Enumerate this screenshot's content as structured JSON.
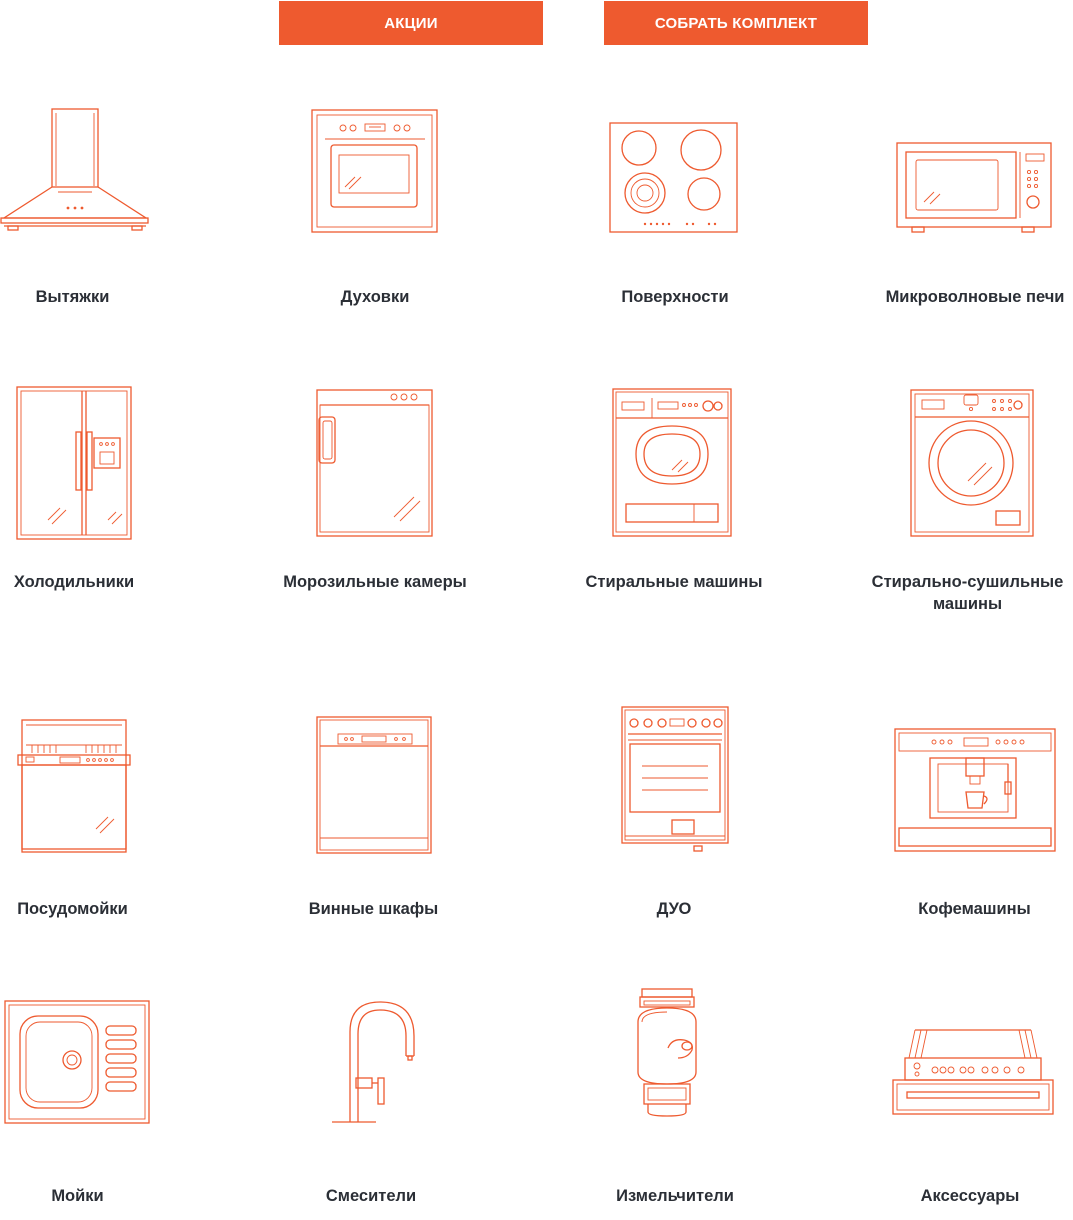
{
  "buttons": {
    "promo": "АКЦИИ",
    "build_set": "СОБРАТЬ КОМПЛЕКТ"
  },
  "colors": {
    "accent": "#ee5a2f",
    "label": "#2b2f36",
    "background": "#ffffff"
  },
  "categories": [
    {
      "label": "Вытяжки",
      "icon": "range-hood-icon"
    },
    {
      "label": "Духовки",
      "icon": "oven-icon"
    },
    {
      "label": "Поверхности",
      "icon": "cooktop-icon"
    },
    {
      "label": "Микроволновые печи",
      "icon": "microwave-icon"
    },
    {
      "label": "Холодильники",
      "icon": "refrigerator-icon"
    },
    {
      "label": "Морозильные камеры",
      "icon": "freezer-icon"
    },
    {
      "label": "Стиральные машины",
      "icon": "washing-machine-icon"
    },
    {
      "label": "Стирально-сушильные машины",
      "icon": "washer-dryer-icon"
    },
    {
      "label": "Посудомойки",
      "icon": "dishwasher-icon"
    },
    {
      "label": "Винные шкафы",
      "icon": "wine-cabinet-icon"
    },
    {
      "label": "ДУО",
      "icon": "duo-cooker-icon"
    },
    {
      "label": "Кофемашины",
      "icon": "coffee-machine-icon"
    },
    {
      "label": "Мойки",
      "icon": "sink-icon"
    },
    {
      "label": "Смесители",
      "icon": "faucet-icon"
    },
    {
      "label": "Измельчители",
      "icon": "food-waste-disposer-icon"
    },
    {
      "label": "Аксессуары",
      "icon": "accessories-icon"
    }
  ]
}
